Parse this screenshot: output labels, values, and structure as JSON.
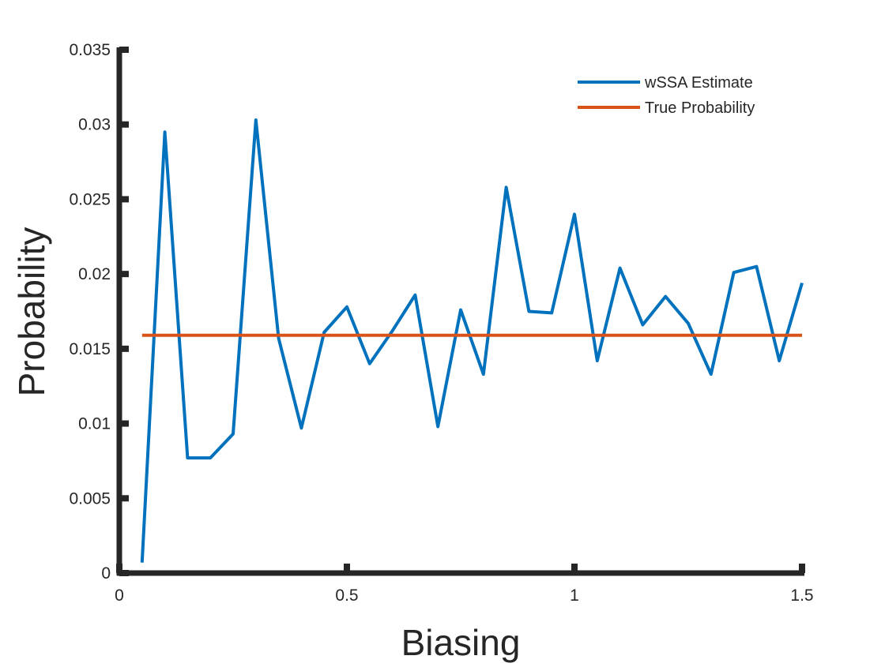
{
  "chart_data": {
    "type": "line",
    "title": "",
    "xlabel": "Biasing",
    "ylabel": "Probability",
    "xlim": [
      0,
      1.5
    ],
    "ylim": [
      0,
      0.035
    ],
    "xticks": [
      0,
      0.5,
      1,
      1.5
    ],
    "xtick_labels": [
      "0",
      "0.5",
      "1",
      "1.5"
    ],
    "yticks": [
      0,
      0.005,
      0.01,
      0.015,
      0.02,
      0.025,
      0.03,
      0.035
    ],
    "ytick_labels": [
      "0",
      "0.005",
      "0.01",
      "0.015",
      "0.02",
      "0.025",
      "0.03",
      "0.035"
    ],
    "grid": false,
    "legend_position": "top-right",
    "series": [
      {
        "name": "wSSA Estimate",
        "color": "#0072BD",
        "x": [
          0.05,
          0.1,
          0.15,
          0.2,
          0.25,
          0.3,
          0.35,
          0.4,
          0.45,
          0.5,
          0.55,
          0.6,
          0.65,
          0.7,
          0.75,
          0.8,
          0.85,
          0.9,
          0.95,
          1.0,
          1.05,
          1.1,
          1.15,
          1.2,
          1.25,
          1.3,
          1.35,
          1.4,
          1.45,
          1.5
        ],
        "y": [
          0.0007,
          0.0295,
          0.0077,
          0.0077,
          0.0093,
          0.0303,
          0.0157,
          0.0097,
          0.0161,
          0.0178,
          0.014,
          0.0162,
          0.0186,
          0.0098,
          0.0176,
          0.0133,
          0.0258,
          0.0175,
          0.0174,
          0.024,
          0.0142,
          0.0204,
          0.0166,
          0.0185,
          0.0167,
          0.0133,
          0.0201,
          0.0205,
          0.0142,
          0.0194
        ]
      },
      {
        "name": "True Probability",
        "color": "#D95319",
        "x": [
          0.05,
          1.5
        ],
        "y": [
          0.0159,
          0.0159
        ]
      }
    ]
  }
}
